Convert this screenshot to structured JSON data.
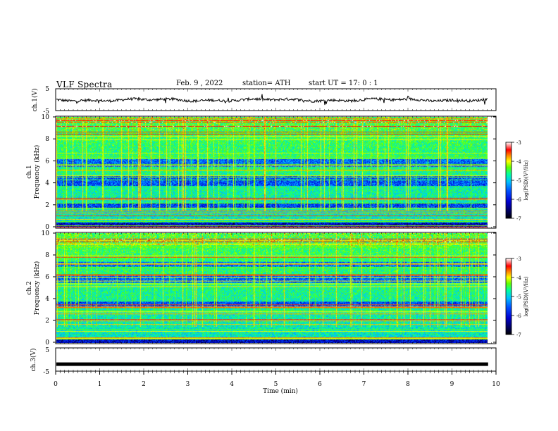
{
  "header": {
    "title": "VLF Spectra",
    "date": "Feb. 9 , 2022",
    "station": "station= ATH",
    "start": "start UT = 17: 0 : 1"
  },
  "chart_data": [
    {
      "type": "line",
      "name": "ch1-waveform",
      "ylabel": "ch.1(V)",
      "ylim": [
        -5,
        5
      ],
      "yticks": [
        "5",
        "-5"
      ],
      "xlim": [
        0,
        10
      ]
    },
    {
      "type": "heatmap",
      "name": "ch1-spectrogram",
      "ylabel": "ch.1\nFrequency (kHz)",
      "ylabel_line1": "ch.1",
      "ylabel_line2": "Frequency (kHz)",
      "ylim": [
        0,
        10
      ],
      "yticks": [
        0,
        2,
        4,
        6,
        8,
        10
      ],
      "colorbar": {
        "label": "log(PSD)(V²/Hz)",
        "range": [
          -7,
          -3
        ],
        "ticks": [
          "-3",
          "-4",
          "-5",
          "-6",
          "-7"
        ]
      },
      "colorbar_label": "log(PSD)(V²/Hz)"
    },
    {
      "type": "heatmap",
      "name": "ch2-spectrogram",
      "ylabel_line1": "ch.2",
      "ylabel_line2": "Frequency (kHz)",
      "ylim": [
        0,
        10
      ],
      "yticks": [
        0,
        2,
        4,
        6,
        8,
        10
      ],
      "colorbar": {
        "label": "log(PSD)(V²/Hz)",
        "range": [
          -7,
          -3
        ],
        "ticks": [
          "-3",
          "-4",
          "-5",
          "-6",
          "-7"
        ]
      },
      "colorbar_label": "log(PSD)(V²/Hz)"
    },
    {
      "type": "line",
      "name": "ch3-waveform",
      "ylabel": "ch.3(V)",
      "ylim": [
        -5,
        5
      ],
      "yticks": [
        "5",
        "-5"
      ],
      "level": -2
    }
  ],
  "xaxis": {
    "label": "Time (min)",
    "ticks": [
      "0",
      "1",
      "2",
      "3",
      "4",
      "5",
      "6",
      "7",
      "8",
      "9",
      "10"
    ],
    "xlim": [
      0,
      10
    ],
    "data_end": 9.82
  },
  "colors": {
    "background": "#ffffff",
    "waveform": "#000000",
    "colormap": [
      "#000000",
      "#000050",
      "#0000d0",
      "#0050ff",
      "#00c0ff",
      "#00ffa0",
      "#60ff00",
      "#ffff00",
      "#ff8000",
      "#ff0000",
      "#ffffff"
    ]
  }
}
